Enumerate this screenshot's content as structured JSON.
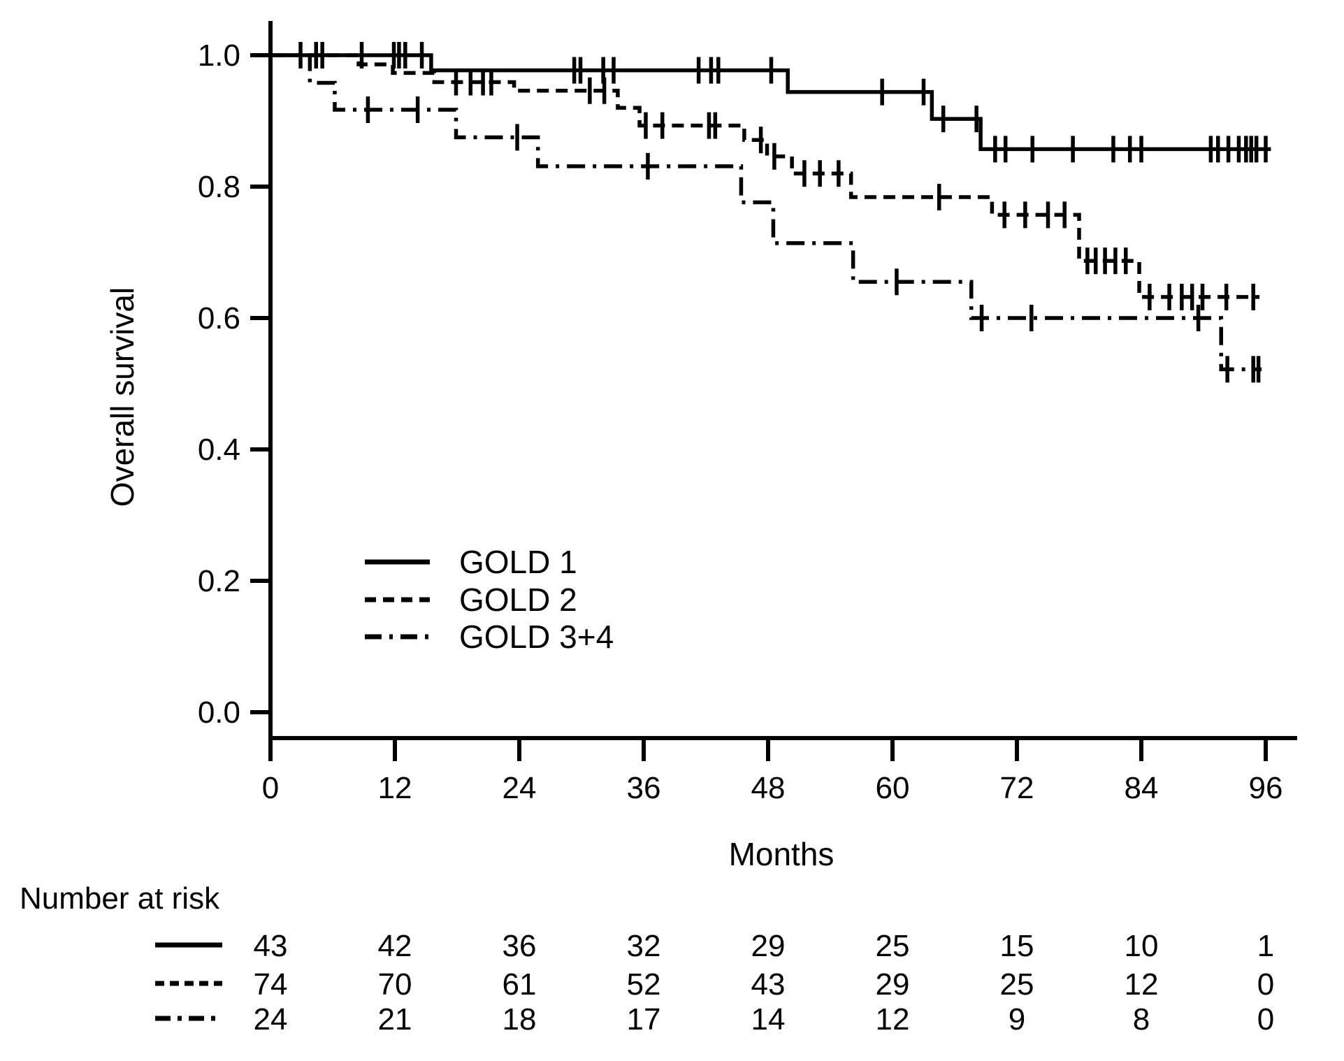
{
  "figure": {
    "background": "#ffffff",
    "ink": "#000000"
  },
  "chart_data": {
    "type": "line",
    "subtype": "kaplan-meier-step",
    "title": "",
    "xlabel": "Months",
    "ylabel": "Overall survival",
    "x_ticks": [
      0,
      12,
      24,
      36,
      48,
      60,
      72,
      84,
      96
    ],
    "y_ticks": [
      "1.0",
      "0.8",
      "0.6",
      "0.4",
      "0.2",
      "0.0"
    ],
    "xlim": [
      0,
      99
    ],
    "ylim": [
      -0.04,
      1.05
    ],
    "grid": false,
    "legend_position": "inside-left-middle",
    "series": [
      {
        "name": "GOLD 1",
        "style": "solid",
        "steps": [
          [
            0,
            1.0
          ],
          [
            15.5,
            0.977
          ],
          [
            49.9,
            0.944
          ],
          [
            63.8,
            0.903
          ],
          [
            68.5,
            0.857
          ]
        ],
        "end_month": 96.5,
        "censors": [
          [
            2.9,
            1.0
          ],
          [
            4.4,
            1.0
          ],
          [
            5.0,
            1.0
          ],
          [
            8.8,
            1.0
          ],
          [
            11.9,
            1.0
          ],
          [
            12.4,
            1.0
          ],
          [
            13.0,
            1.0
          ],
          [
            14.6,
            1.0
          ],
          [
            29.3,
            0.977
          ],
          [
            29.9,
            0.977
          ],
          [
            32.1,
            0.977
          ],
          [
            33.1,
            0.977
          ],
          [
            41.3,
            0.977
          ],
          [
            42.5,
            0.977
          ],
          [
            43.2,
            0.977
          ],
          [
            48.3,
            0.977
          ],
          [
            59.0,
            0.944
          ],
          [
            63.0,
            0.944
          ],
          [
            64.9,
            0.903
          ],
          [
            68.1,
            0.903
          ],
          [
            69.9,
            0.857
          ],
          [
            70.9,
            0.857
          ],
          [
            73.5,
            0.857
          ],
          [
            77.4,
            0.857
          ],
          [
            81.3,
            0.857
          ],
          [
            82.9,
            0.857
          ],
          [
            84.0,
            0.857
          ],
          [
            90.7,
            0.857
          ],
          [
            91.4,
            0.857
          ],
          [
            92.4,
            0.857
          ],
          [
            93.4,
            0.857
          ],
          [
            94.1,
            0.857
          ],
          [
            94.6,
            0.857
          ],
          [
            95.1,
            0.857
          ],
          [
            96.0,
            0.857
          ]
        ]
      },
      {
        "name": "GOLD 2",
        "style": "dashed",
        "steps": [
          [
            0,
            1.0
          ],
          [
            8.5,
            0.986
          ],
          [
            11.8,
            0.973
          ],
          [
            15.8,
            0.959
          ],
          [
            23.5,
            0.946
          ],
          [
            33.5,
            0.92
          ],
          [
            35.6,
            0.893
          ],
          [
            45.7,
            0.871
          ],
          [
            47.9,
            0.846
          ],
          [
            50.3,
            0.82
          ],
          [
            56.0,
            0.784
          ],
          [
            69.6,
            0.757
          ],
          [
            78.0,
            0.687
          ],
          [
            83.8,
            0.632
          ]
        ],
        "end_month": 95.4,
        "censors": [
          [
            17.9,
            0.959
          ],
          [
            19.3,
            0.959
          ],
          [
            20.5,
            0.959
          ],
          [
            21.3,
            0.959
          ],
          [
            30.8,
            0.946
          ],
          [
            32.2,
            0.946
          ],
          [
            36.2,
            0.893
          ],
          [
            37.8,
            0.893
          ],
          [
            42.3,
            0.893
          ],
          [
            42.9,
            0.893
          ],
          [
            47.3,
            0.871
          ],
          [
            48.6,
            0.846
          ],
          [
            51.5,
            0.82
          ],
          [
            53.0,
            0.82
          ],
          [
            54.8,
            0.82
          ],
          [
            64.5,
            0.784
          ],
          [
            70.8,
            0.757
          ],
          [
            72.8,
            0.757
          ],
          [
            75.0,
            0.757
          ],
          [
            76.6,
            0.757
          ],
          [
            78.8,
            0.687
          ],
          [
            79.6,
            0.687
          ],
          [
            80.5,
            0.687
          ],
          [
            81.5,
            0.687
          ],
          [
            82.5,
            0.687
          ],
          [
            84.8,
            0.632
          ],
          [
            86.7,
            0.632
          ],
          [
            87.9,
            0.632
          ],
          [
            88.9,
            0.632
          ],
          [
            89.9,
            0.632
          ],
          [
            92.2,
            0.632
          ],
          [
            94.8,
            0.632
          ]
        ]
      },
      {
        "name": "GOLD 3+4",
        "style": "dashdot",
        "steps": [
          [
            0,
            1.0
          ],
          [
            3.8,
            0.958
          ],
          [
            6.2,
            0.917
          ],
          [
            17.9,
            0.875
          ],
          [
            25.8,
            0.831
          ],
          [
            45.4,
            0.776
          ],
          [
            48.5,
            0.714
          ],
          [
            56.2,
            0.655
          ],
          [
            67.6,
            0.6
          ],
          [
            91.7,
            0.522
          ]
        ],
        "end_month": 95.6,
        "censors": [
          [
            9.4,
            0.917
          ],
          [
            14.2,
            0.917
          ],
          [
            23.8,
            0.875
          ],
          [
            36.4,
            0.831
          ],
          [
            60.4,
            0.655
          ],
          [
            68.6,
            0.6
          ],
          [
            73.4,
            0.6
          ],
          [
            89.5,
            0.6
          ],
          [
            92.3,
            0.522
          ],
          [
            94.8,
            0.522
          ],
          [
            95.3,
            0.522
          ]
        ]
      }
    ],
    "risk_table": {
      "title": "Number at risk",
      "months": [
        0,
        12,
        24,
        36,
        48,
        60,
        72,
        84,
        96
      ],
      "rows": [
        {
          "series": "GOLD 1",
          "values": [
            43,
            42,
            36,
            32,
            29,
            25,
            15,
            10,
            1
          ]
        },
        {
          "series": "GOLD 2",
          "values": [
            74,
            70,
            61,
            52,
            43,
            29,
            25,
            12,
            0
          ]
        },
        {
          "series": "GOLD 3+4",
          "values": [
            24,
            21,
            18,
            17,
            14,
            12,
            9,
            8,
            0
          ]
        }
      ]
    }
  }
}
